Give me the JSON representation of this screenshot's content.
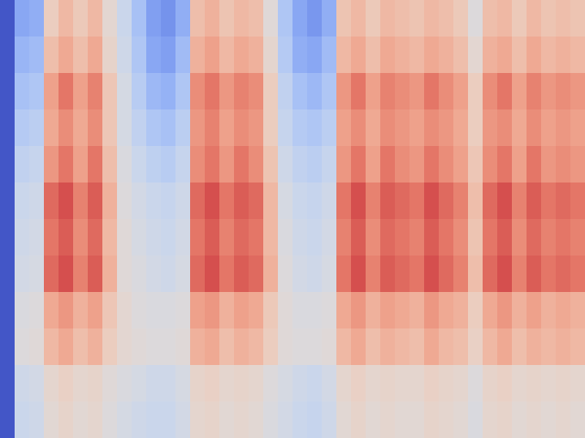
{
  "chart_data": {
    "type": "heatmap",
    "color": "coolwarm",
    "tick_labels": false,
    "zlim": [
      0,
      100
    ],
    "z": [
      [
        2,
        20,
        22,
        62,
        70,
        64,
        70,
        55,
        40,
        28,
        18,
        15,
        22,
        68,
        72,
        66,
        70,
        68,
        52,
        30,
        20,
        16,
        22,
        66,
        70,
        64,
        70,
        68,
        66,
        70,
        68,
        64,
        50,
        68,
        70,
        64,
        70,
        66,
        68,
        66
      ],
      [
        2,
        24,
        26,
        68,
        74,
        68,
        74,
        58,
        42,
        30,
        20,
        18,
        26,
        72,
        76,
        70,
        74,
        72,
        56,
        32,
        22,
        20,
        26,
        70,
        74,
        68,
        74,
        72,
        70,
        74,
        72,
        68,
        55,
        72,
        74,
        68,
        74,
        70,
        72,
        70
      ],
      [
        2,
        28,
        30,
        76,
        84,
        76,
        82,
        65,
        45,
        33,
        25,
        23,
        30,
        80,
        84,
        78,
        82,
        80,
        62,
        36,
        28,
        25,
        30,
        78,
        84,
        76,
        82,
        80,
        78,
        84,
        80,
        76,
        62,
        80,
        84,
        76,
        82,
        78,
        80,
        78
      ],
      [
        2,
        32,
        34,
        74,
        80,
        74,
        80,
        65,
        45,
        36,
        30,
        28,
        34,
        78,
        82,
        76,
        80,
        78,
        62,
        38,
        32,
        30,
        34,
        76,
        80,
        74,
        80,
        78,
        76,
        80,
        78,
        74,
        62,
        78,
        80,
        74,
        80,
        76,
        78,
        76
      ],
      [
        2,
        36,
        38,
        78,
        84,
        76,
        84,
        68,
        48,
        40,
        35,
        33,
        38,
        80,
        84,
        78,
        84,
        80,
        66,
        42,
        36,
        34,
        38,
        78,
        84,
        76,
        84,
        80,
        78,
        84,
        80,
        76,
        65,
        80,
        84,
        76,
        84,
        78,
        80,
        78
      ],
      [
        2,
        40,
        42,
        86,
        90,
        82,
        88,
        72,
        50,
        44,
        40,
        38,
        42,
        86,
        90,
        84,
        88,
        86,
        70,
        46,
        40,
        38,
        42,
        84,
        90,
        82,
        88,
        86,
        84,
        90,
        86,
        82,
        68,
        86,
        90,
        82,
        88,
        84,
        86,
        84
      ],
      [
        2,
        42,
        44,
        84,
        88,
        80,
        86,
        70,
        52,
        46,
        42,
        40,
        44,
        84,
        88,
        82,
        86,
        84,
        70,
        48,
        42,
        40,
        44,
        82,
        88,
        80,
        86,
        84,
        82,
        88,
        84,
        80,
        66,
        84,
        88,
        80,
        86,
        82,
        84,
        82
      ],
      [
        2,
        44,
        46,
        86,
        90,
        82,
        88,
        72,
        52,
        48,
        44,
        42,
        46,
        86,
        90,
        84,
        88,
        86,
        72,
        50,
        44,
        42,
        46,
        84,
        90,
        82,
        88,
        86,
        84,
        90,
        86,
        82,
        68,
        86,
        90,
        82,
        88,
        84,
        86,
        84
      ],
      [
        2,
        48,
        50,
        74,
        78,
        72,
        76,
        65,
        55,
        50,
        48,
        48,
        50,
        76,
        78,
        72,
        76,
        74,
        64,
        52,
        48,
        48,
        50,
        74,
        78,
        72,
        76,
        74,
        72,
        78,
        74,
        72,
        62,
        74,
        78,
        72,
        76,
        72,
        74,
        72
      ],
      [
        2,
        50,
        52,
        70,
        74,
        68,
        72,
        62,
        55,
        52,
        50,
        50,
        52,
        72,
        74,
        68,
        72,
        70,
        62,
        52,
        50,
        50,
        52,
        70,
        74,
        68,
        72,
        70,
        68,
        74,
        70,
        68,
        60,
        70,
        74,
        68,
        72,
        70,
        72,
        70
      ],
      [
        2,
        42,
        44,
        56,
        60,
        56,
        58,
        52,
        48,
        45,
        42,
        42,
        46,
        58,
        60,
        56,
        58,
        56,
        50,
        46,
        42,
        40,
        44,
        56,
        60,
        56,
        58,
        56,
        56,
        60,
        58,
        56,
        50,
        58,
        60,
        56,
        58,
        56,
        58,
        56
      ],
      [
        2,
        40,
        42,
        54,
        58,
        54,
        56,
        50,
        45,
        42,
        40,
        40,
        44,
        56,
        58,
        54,
        56,
        54,
        48,
        44,
        40,
        38,
        42,
        54,
        58,
        54,
        56,
        54,
        54,
        58,
        56,
        54,
        48,
        56,
        58,
        54,
        56,
        54,
        56,
        54
      ]
    ]
  }
}
